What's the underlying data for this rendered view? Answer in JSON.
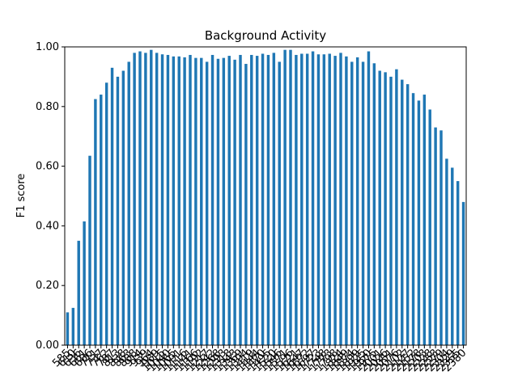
{
  "chart_data": {
    "type": "bar",
    "title": "Background Activity",
    "y_label": "F1 score",
    "color": "#1f77b4",
    "categories": [
      "585",
      "610",
      "636",
      "661",
      "686",
      "711",
      "737",
      "762",
      "787",
      "813",
      "838",
      "863",
      "888",
      "914",
      "939",
      "964",
      "989",
      "1015",
      "1040",
      "1065",
      "1091",
      "1116",
      "1141",
      "1166",
      "1192",
      "1217",
      "1242",
      "1268",
      "1293",
      "1318",
      "1343",
      "1369",
      "1394",
      "1419",
      "1444",
      "1470",
      "1495",
      "1520",
      "1546",
      "1571",
      "1596",
      "1621",
      "1647",
      "1672",
      "1697",
      "1723",
      "1748",
      "1773",
      "1798",
      "1824",
      "1849",
      "1874",
      "1899",
      "1925",
      "1950",
      "1975",
      "2001",
      "2026",
      "2051",
      "2076",
      "2102",
      "2127",
      "2152",
      "2178",
      "2203",
      "2228",
      "2253",
      "2279",
      "2304",
      "2329",
      "2355",
      "2380"
    ],
    "values": [
      0.11,
      0.125,
      0.35,
      0.415,
      0.635,
      0.825,
      0.84,
      0.88,
      0.93,
      0.9,
      0.92,
      0.95,
      0.98,
      0.985,
      0.98,
      0.99,
      0.98,
      0.975,
      0.973,
      0.968,
      0.968,
      0.965,
      0.973,
      0.963,
      0.963,
      0.95,
      0.973,
      0.96,
      0.963,
      0.97,
      0.957,
      0.973,
      0.943,
      0.973,
      0.97,
      0.977,
      0.973,
      0.98,
      0.95,
      0.99,
      0.99,
      0.973,
      0.977,
      0.977,
      0.985,
      0.975,
      0.975,
      0.977,
      0.97,
      0.98,
      0.968,
      0.95,
      0.965,
      0.95,
      0.985,
      0.945,
      0.92,
      0.915,
      0.9,
      0.925,
      0.89,
      0.875,
      0.845,
      0.82,
      0.84,
      0.79,
      0.73,
      0.72,
      0.625,
      0.595,
      0.55,
      0.48
    ],
    "ylim": [
      0,
      1
    ],
    "yticks": [
      {
        "value": 0,
        "label": "0.00"
      },
      {
        "value": 0.2,
        "label": "0.20"
      },
      {
        "value": 0.4,
        "label": "0.40"
      },
      {
        "value": 0.6,
        "label": "0.60"
      },
      {
        "value": 0.8,
        "label": "0.80"
      },
      {
        "value": 1,
        "label": "1.00"
      }
    ]
  }
}
